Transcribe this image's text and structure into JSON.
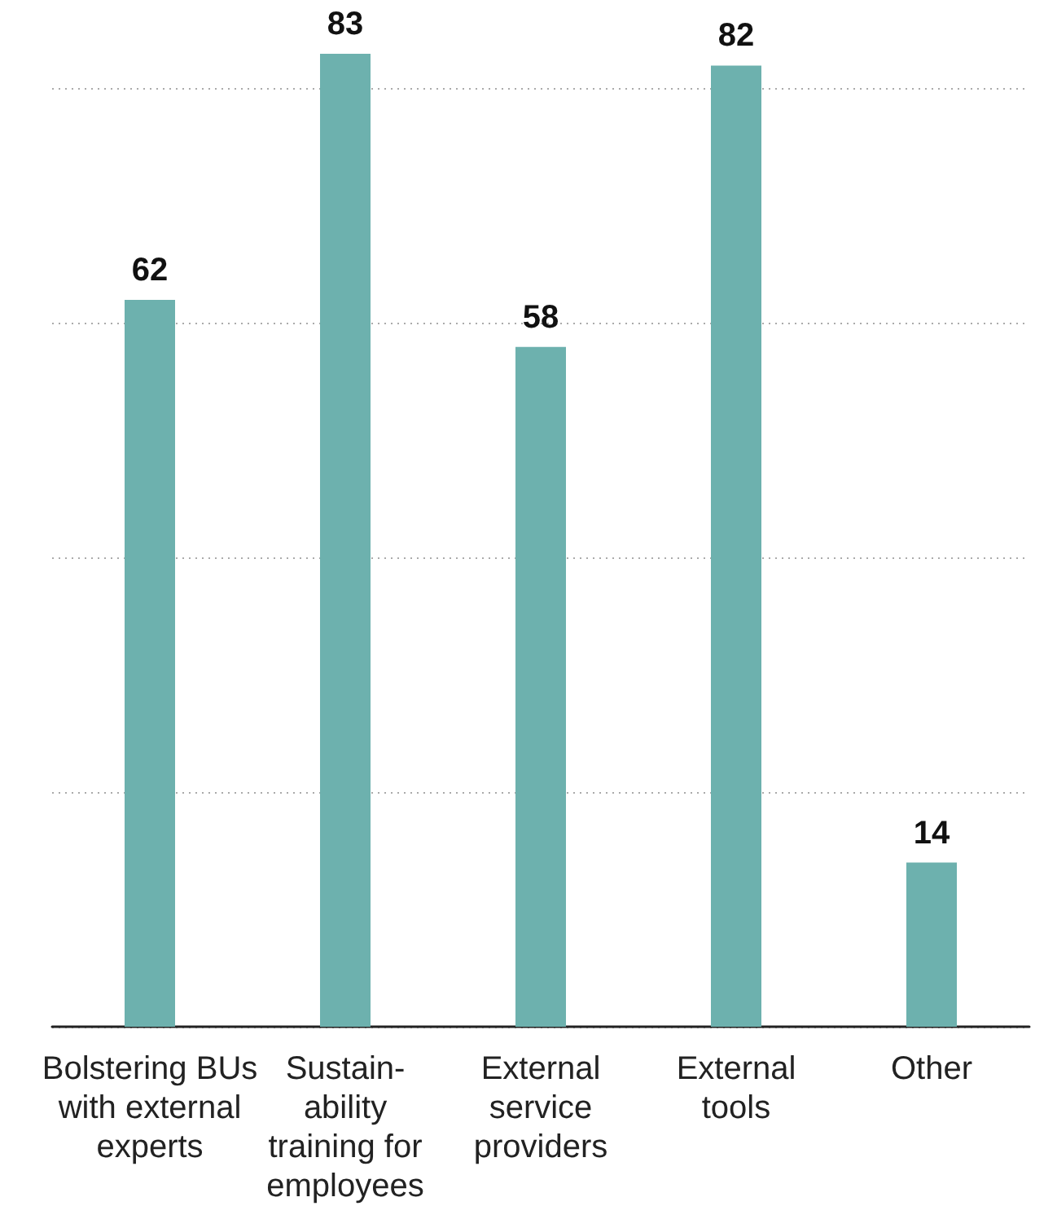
{
  "chart_data": {
    "type": "bar",
    "categories": [
      "Bolstering BUs\nwith external\nexperts",
      "Sustain-\nability\ntraining for\nemployees",
      "External\nservice\nproviders",
      "External\ntools",
      "Other"
    ],
    "values": [
      62,
      83,
      58,
      82,
      14
    ],
    "color": "#6db1ae",
    "yticks": [
      {
        "value": 0,
        "label": null
      },
      {
        "value": 20,
        "label": null
      },
      {
        "value": 40,
        "label": null
      },
      {
        "value": 60,
        "label": null
      },
      {
        "value": 80,
        "label": null
      }
    ],
    "grid": "y",
    "tick_labels": "x",
    "data_labels": true
  }
}
